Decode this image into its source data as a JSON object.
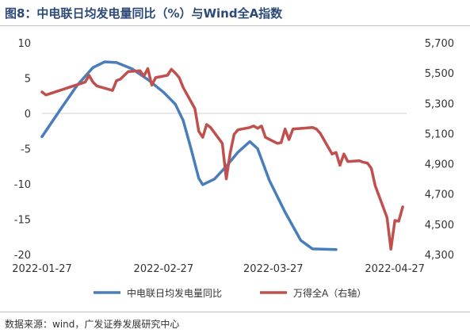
{
  "title": "图8：中电联日均发电量同比（%）与Wind全A指数",
  "source": "数据来源：wind，广发证券发展研究中心",
  "chart_data": {
    "type": "line",
    "title": "图8：中电联日均发电量同比（%）与Wind全A指数",
    "x_ticks": [
      "2022-01-27",
      "2022-02-27",
      "2022-03-27",
      "2022-04-27"
    ],
    "x_range": [
      "2022-01-27",
      "2022-04-30"
    ],
    "y_left": {
      "ticks": [
        "10",
        "5",
        "0",
        "-5",
        "-10",
        "-15",
        "-20"
      ],
      "range": [
        -20,
        10
      ]
    },
    "y_right": {
      "ticks": [
        "5,700",
        "5,500",
        "5,300",
        "5,100",
        "4,900",
        "4,700",
        "4,500",
        "4,300"
      ],
      "range": [
        4300,
        5700
      ]
    },
    "grid": false,
    "legend_position": "bottom",
    "series": [
      {
        "name": "中电联日均发电量同比",
        "axis": "left",
        "color": "#4a7ebb",
        "points": [
          [
            "2022-01-27",
            -3.3
          ],
          [
            "2022-02-01",
            0.8
          ],
          [
            "2022-02-05",
            4.0
          ],
          [
            "2022-02-09",
            6.5
          ],
          [
            "2022-02-12",
            7.3
          ],
          [
            "2022-02-15",
            7.2
          ],
          [
            "2022-02-19",
            6.3
          ],
          [
            "2022-02-23",
            4.8
          ],
          [
            "2022-02-27",
            3.0
          ],
          [
            "2022-03-02",
            1.3
          ],
          [
            "2022-03-04",
            -1.0
          ],
          [
            "2022-03-06",
            -5.0
          ],
          [
            "2022-03-08",
            -9.2
          ],
          [
            "2022-03-09",
            -10.1
          ],
          [
            "2022-03-12",
            -9.3
          ],
          [
            "2022-03-15",
            -7.5
          ],
          [
            "2022-03-18",
            -5.5
          ],
          [
            "2022-03-21",
            -4.0
          ],
          [
            "2022-03-23",
            -5.0
          ],
          [
            "2022-03-26",
            -9.5
          ],
          [
            "2022-03-30",
            -14.0
          ],
          [
            "2022-04-03",
            -18.0
          ],
          [
            "2022-04-06",
            -19.2
          ],
          [
            "2022-04-12",
            -19.3
          ]
        ]
      },
      {
        "name": "万得全A（右轴）",
        "axis": "right",
        "color": "#c0504d",
        "points": [
          [
            "2022-01-27",
            5375
          ],
          [
            "2022-01-28",
            5355
          ],
          [
            "2022-02-07",
            5440
          ],
          [
            "2022-02-08",
            5485
          ],
          [
            "2022-02-09",
            5440
          ],
          [
            "2022-02-10",
            5415
          ],
          [
            "2022-02-14",
            5385
          ],
          [
            "2022-02-15",
            5450
          ],
          [
            "2022-02-16",
            5460
          ],
          [
            "2022-02-18",
            5510
          ],
          [
            "2022-02-21",
            5515
          ],
          [
            "2022-02-22",
            5480
          ],
          [
            "2022-02-23",
            5530
          ],
          [
            "2022-02-24",
            5420
          ],
          [
            "2022-02-25",
            5470
          ],
          [
            "2022-02-28",
            5485
          ],
          [
            "2022-03-01",
            5525
          ],
          [
            "2022-03-02",
            5500
          ],
          [
            "2022-03-03",
            5470
          ],
          [
            "2022-03-04",
            5405
          ],
          [
            "2022-03-07",
            5265
          ],
          [
            "2022-03-08",
            5115
          ],
          [
            "2022-03-09",
            5075
          ],
          [
            "2022-03-10",
            5160
          ],
          [
            "2022-03-11",
            5140
          ],
          [
            "2022-03-14",
            5035
          ],
          [
            "2022-03-15",
            4800
          ],
          [
            "2022-03-16",
            4970
          ],
          [
            "2022-03-17",
            5095
          ],
          [
            "2022-03-18",
            5125
          ],
          [
            "2022-03-21",
            5140
          ],
          [
            "2022-03-22",
            5150
          ],
          [
            "2022-03-23",
            5135
          ],
          [
            "2022-03-24",
            5150
          ],
          [
            "2022-03-25",
            5075
          ],
          [
            "2022-03-28",
            5035
          ],
          [
            "2022-03-29",
            5040
          ],
          [
            "2022-03-30",
            5130
          ],
          [
            "2022-03-31",
            5060
          ],
          [
            "2022-04-01",
            5130
          ],
          [
            "2022-04-06",
            5140
          ],
          [
            "2022-04-07",
            5130
          ],
          [
            "2022-04-08",
            5100
          ],
          [
            "2022-04-11",
            4965
          ],
          [
            "2022-04-12",
            4975
          ],
          [
            "2022-04-13",
            4890
          ],
          [
            "2022-04-14",
            4965
          ],
          [
            "2022-04-15",
            4915
          ],
          [
            "2022-04-18",
            4920
          ],
          [
            "2022-04-19",
            4910
          ],
          [
            "2022-04-20",
            4905
          ],
          [
            "2022-04-21",
            4870
          ],
          [
            "2022-04-22",
            4755
          ],
          [
            "2022-04-25",
            4545
          ],
          [
            "2022-04-26",
            4335
          ],
          [
            "2022-04-27",
            4525
          ],
          [
            "2022-04-28",
            4520
          ],
          [
            "2022-04-29",
            4615
          ]
        ]
      }
    ]
  }
}
